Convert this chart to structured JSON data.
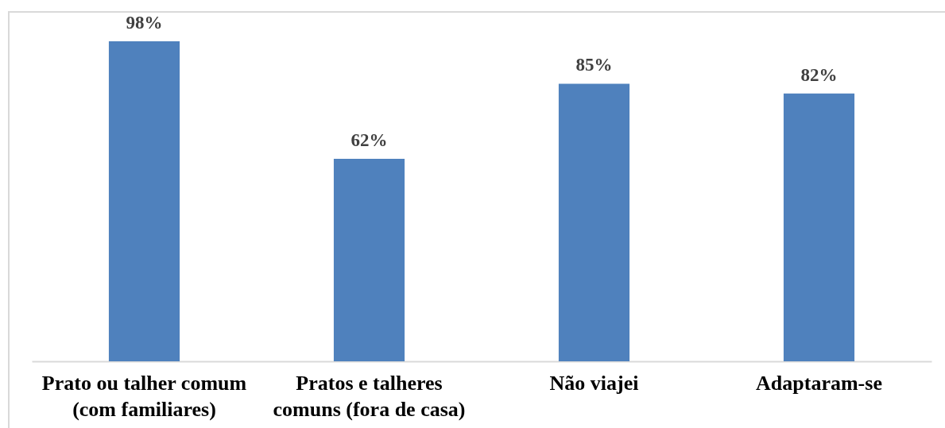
{
  "chart_data": {
    "type": "bar",
    "categories": [
      "Prato ou talher comum (com familiares)",
      "Pratos e talheres comuns (fora de casa)",
      "Não viajei",
      "Adaptaram-se"
    ],
    "values": [
      98,
      62,
      85,
      82
    ],
    "color": "#4f81bd",
    "value_labels": [
      "98%",
      "62%",
      "85%",
      "82%"
    ]
  }
}
